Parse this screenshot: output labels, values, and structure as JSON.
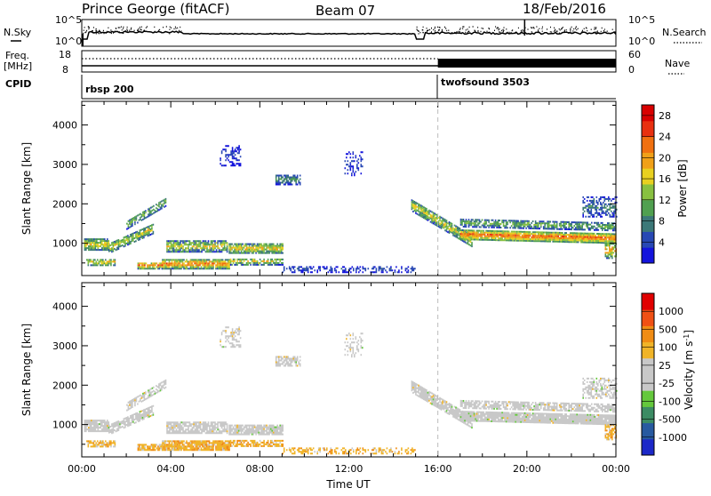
{
  "header": {
    "station": "Prince George (fitACF)",
    "beam": "Beam 07",
    "date": "18/Feb/2016"
  },
  "strip_labels": {
    "nsky": "N.Sky",
    "nsearch": "N.Search",
    "freq_line1": "Freq.",
    "freq_line2": "[MHz]",
    "nave": "Nave",
    "cpid": "CPID"
  },
  "strip_ticks": {
    "noise_left_top": "10^5",
    "noise_left_bottom": "10^0",
    "noise_right_top": "10^5",
    "noise_right_bottom": "10^0",
    "freq_top": "18",
    "freq_bottom": "8",
    "nave_top": "60",
    "nave_bottom": "0"
  },
  "cpid_programs": [
    {
      "name": "rbsp 200",
      "start_hour": 0
    },
    {
      "name": "twofsound 3503",
      "start_hour": 16
    }
  ],
  "chart_data": [
    {
      "type": "heatmap",
      "panel": "power",
      "ylabel": "Slant Range [km]",
      "yticks": [
        1000,
        2000,
        3000,
        4000
      ],
      "ylim": [
        180,
        4600
      ],
      "xticks": [
        "00:00",
        "04:00",
        "08:00",
        "12:00",
        "16:00",
        "20:00",
        "00:00"
      ],
      "xlim_hours": [
        0,
        24
      ],
      "colorbar": {
        "label": "Power [dB]",
        "ticks": [
          "4",
          "8",
          "12",
          "16",
          "20",
          "24",
          "28"
        ],
        "range": [
          0,
          30
        ],
        "colors": [
          "#1414dc",
          "#2848b4",
          "#3c7878",
          "#50a050",
          "#88c040",
          "#e8d020",
          "#f0a018",
          "#f07010",
          "#e83010",
          "#d80000"
        ]
      }
    },
    {
      "type": "heatmap",
      "panel": "velocity",
      "ylabel": "Slant Range [km]",
      "yticks": [
        1000,
        2000,
        3000,
        4000
      ],
      "ylim": [
        180,
        4600
      ],
      "xticks": [
        "00:00",
        "04:00",
        "08:00",
        "12:00",
        "16:00",
        "20:00",
        "00:00"
      ],
      "xlabel": "Time UT",
      "xlim_hours": [
        0,
        24
      ],
      "colorbar": {
        "label": "Velocity [m s^-1]",
        "ticks": [
          "1000",
          "500",
          "100",
          "25",
          "-25",
          "-100",
          "-500",
          "-1000"
        ],
        "colors": [
          "#1c28c8",
          "#285aa0",
          "#3c8c64",
          "#64c83c",
          "#c8c8c8",
          "#c8c8c8",
          "#f0b428",
          "#f08c14",
          "#f05014",
          "#e00000"
        ]
      }
    }
  ]
}
